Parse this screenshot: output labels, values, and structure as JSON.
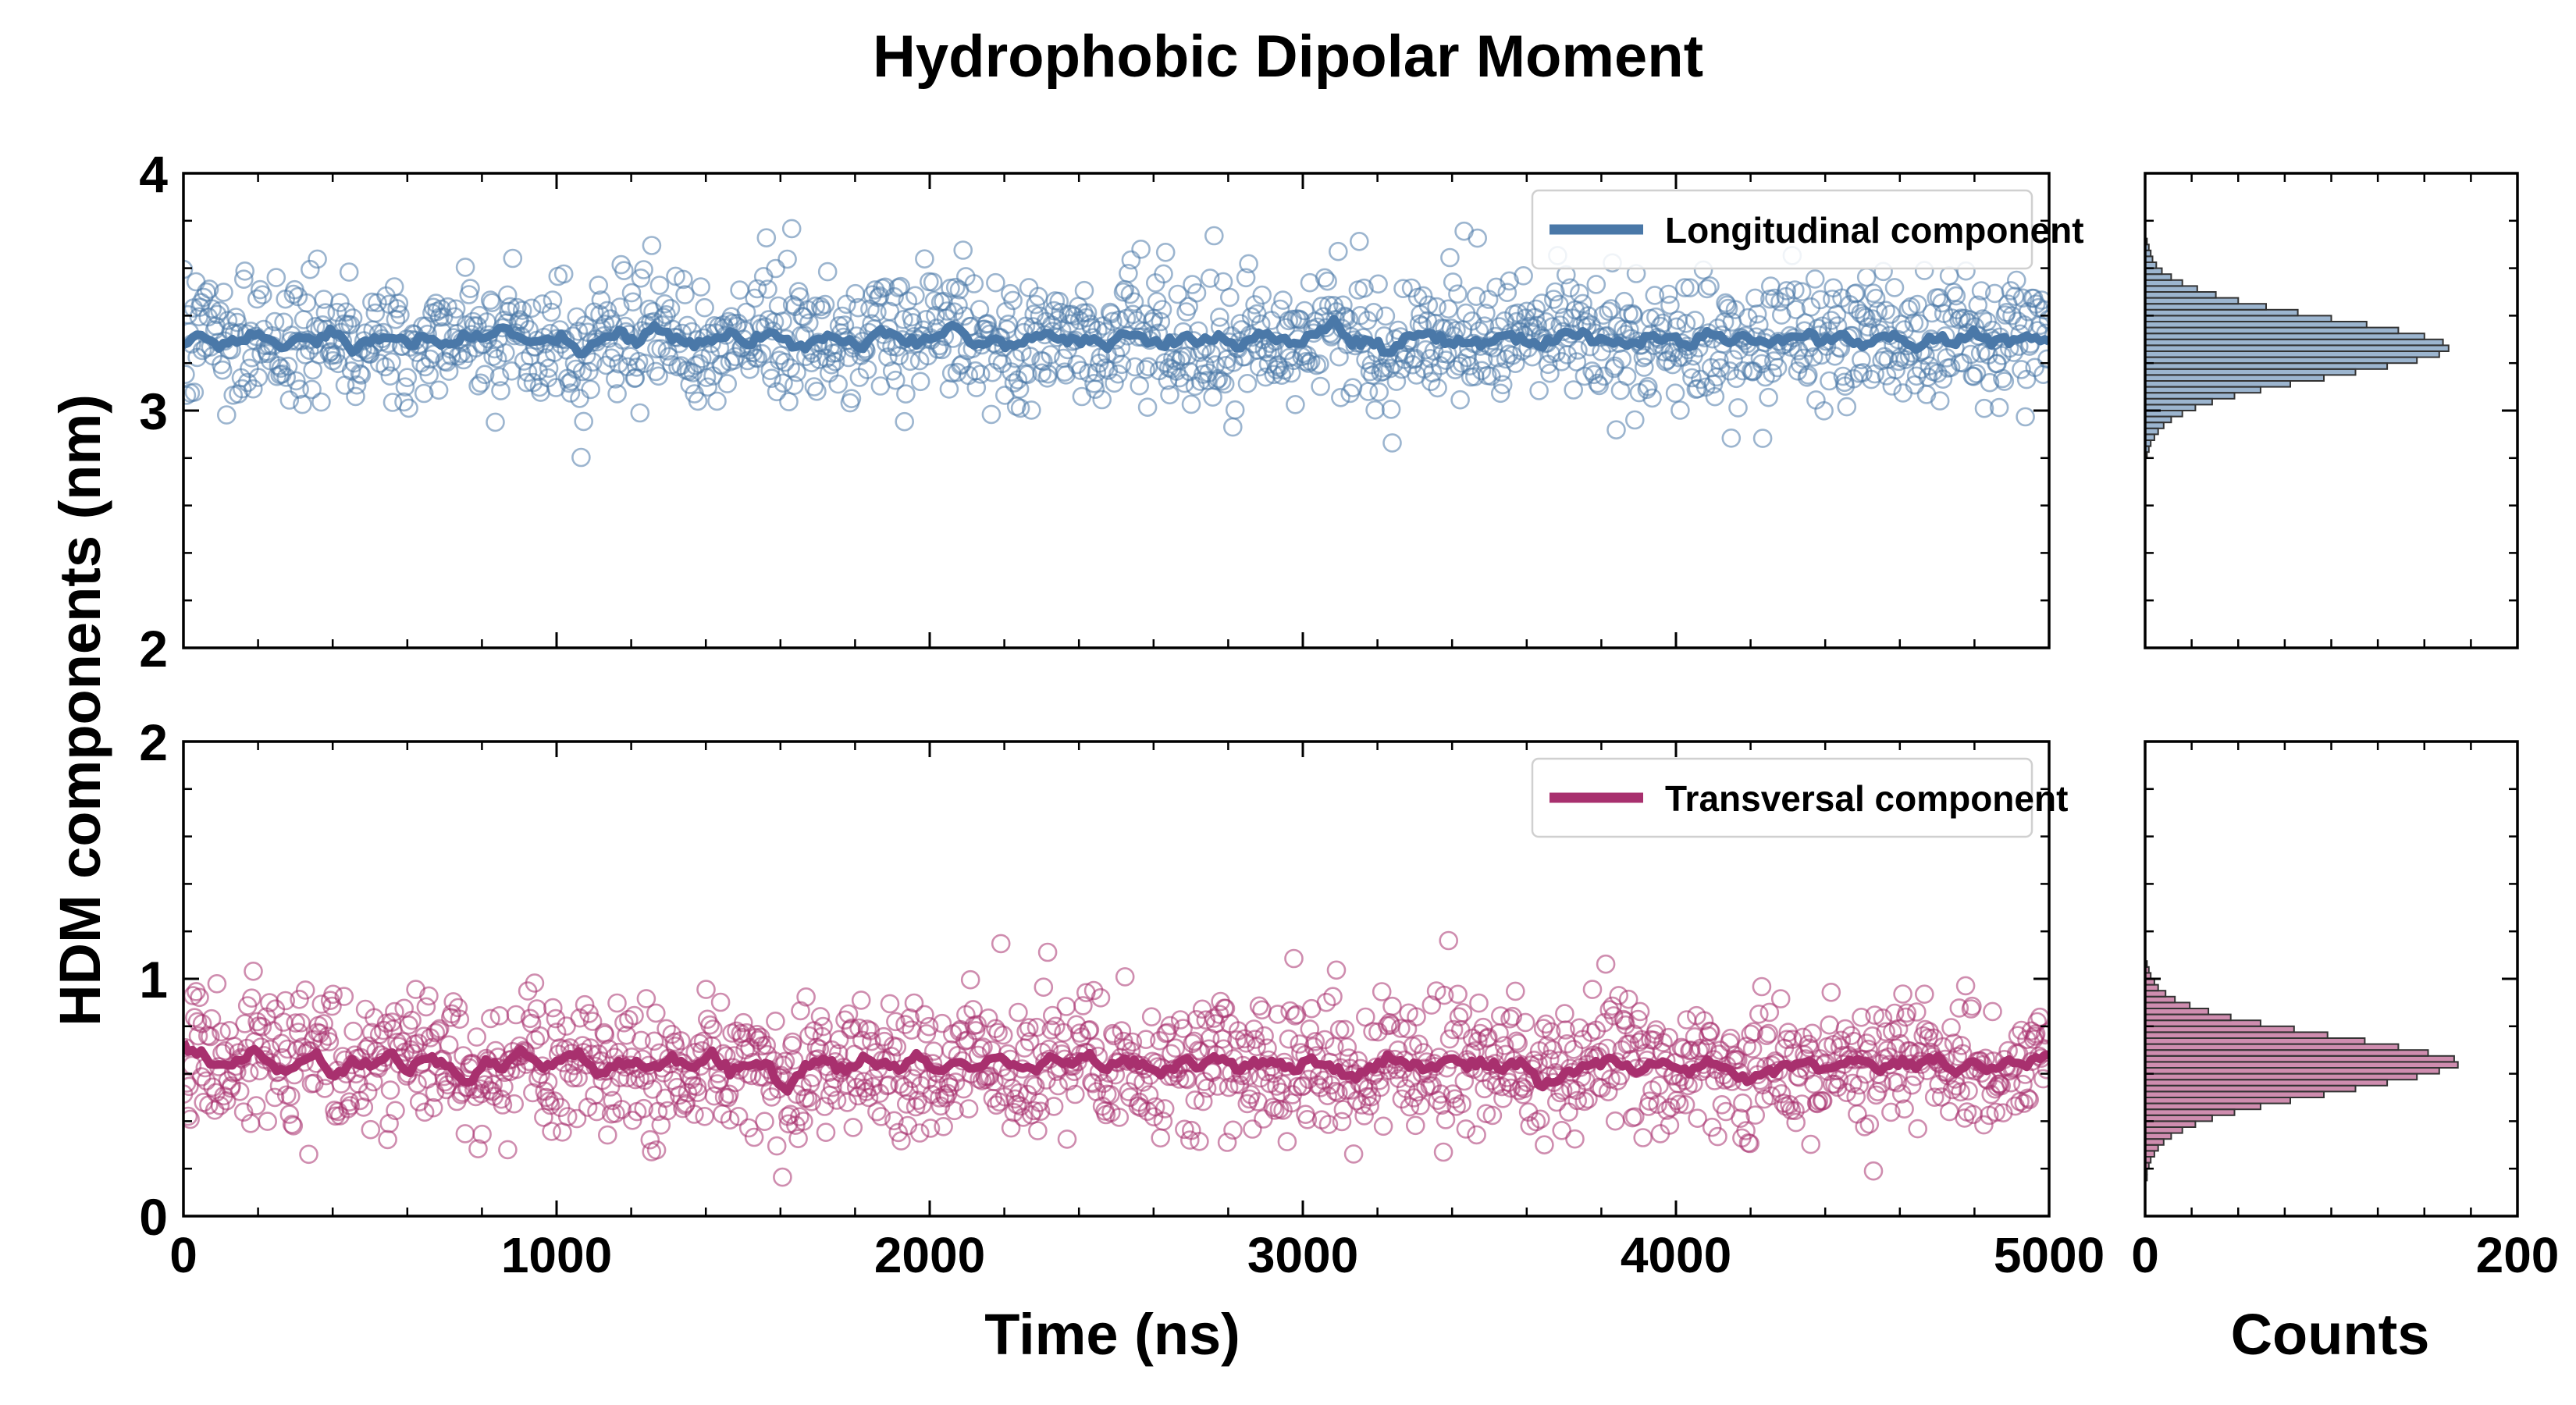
{
  "chart_data": {
    "title": "Hydrophobic Dipolar Moment",
    "ylabel": "HDM components (nm)",
    "xlabel_main": "Time (ns)",
    "xlabel_hist": "Counts",
    "x_range": [
      0,
      5000
    ],
    "x_ticks": [
      0,
      1000,
      2000,
      3000,
      4000,
      5000
    ],
    "x_tick_labels": [
      "0",
      "1000",
      "2000",
      "3000",
      "4000",
      "5000"
    ],
    "hist_x_range": [
      0,
      200
    ],
    "hist_x_ticks": [
      0,
      200
    ],
    "hist_x_tick_labels": [
      "0",
      "200"
    ],
    "panels": [
      {
        "type": "scatter+line",
        "legend": "Longitudinal component",
        "color": "#4a78a8",
        "ylim": [
          2,
          4
        ],
        "y_ticks": [
          2,
          3,
          4
        ],
        "y_tick_labels": [
          "2",
          "3",
          "4"
        ],
        "n_points": 1400,
        "seed": 7,
        "scatter_mean": 3.3,
        "scatter_sd": 0.15,
        "running_mean": [
          3.28,
          3.32,
          3.27,
          3.3,
          3.33,
          3.26,
          3.31,
          3.29,
          3.34,
          3.25,
          3.3,
          3.32,
          3.28,
          3.31,
          3.27,
          3.33,
          3.29,
          3.35,
          3.3,
          3.28,
          3.31,
          3.24,
          3.3,
          3.33,
          3.29,
          3.36,
          3.31,
          3.27,
          3.3,
          3.32,
          3.28,
          3.34,
          3.29,
          3.26,
          3.31,
          3.3,
          3.27,
          3.33,
          3.3,
          3.29,
          3.32,
          3.35,
          3.28,
          3.3,
          3.26,
          3.31,
          3.33,
          3.29,
          3.3,
          3.27,
          3.34,
          3.3,
          3.28,
          3.31,
          3.29,
          3.32,
          3.27,
          3.33,
          3.3,
          3.29,
          3.31,
          3.38,
          3.28,
          3.3,
          3.24,
          3.31,
          3.33,
          3.29,
          3.3,
          3.27,
          3.32,
          3.3,
          3.28,
          3.31,
          3.33,
          3.29,
          3.3,
          3.27,
          3.32,
          3.3,
          3.28,
          3.34,
          3.29,
          3.31,
          3.27,
          3.3,
          3.33,
          3.29,
          3.31,
          3.28,
          3.3,
          3.32,
          3.27,
          3.31,
          3.29,
          3.33,
          3.28,
          3.3,
          3.31,
          3.3
        ],
        "hist": {
          "bin_start": 2.8,
          "bin_width": 0.025,
          "counts": [
            1,
            2,
            3,
            5,
            7,
            10,
            14,
            20,
            27,
            36,
            48,
            62,
            78,
            96,
            113,
            130,
            146,
            158,
            163,
            160,
            150,
            136,
            119,
            100,
            82,
            65,
            50,
            38,
            28,
            20,
            14,
            9,
            6,
            4,
            3,
            2,
            1
          ]
        }
      },
      {
        "type": "scatter+line",
        "legend": "Transversal component",
        "color": "#a8306e",
        "ylim": [
          0,
          2
        ],
        "y_ticks": [
          0,
          1,
          2
        ],
        "y_tick_labels": [
          "0",
          "1",
          "2"
        ],
        "n_points": 1400,
        "seed": 19,
        "scatter_mean": 0.64,
        "scatter_sd": 0.16,
        "running_mean": [
          0.72,
          0.68,
          0.62,
          0.66,
          0.7,
          0.6,
          0.64,
          0.68,
          0.58,
          0.66,
          0.63,
          0.69,
          0.61,
          0.67,
          0.64,
          0.55,
          0.66,
          0.62,
          0.7,
          0.63,
          0.65,
          0.68,
          0.6,
          0.64,
          0.66,
          0.62,
          0.67,
          0.63,
          0.69,
          0.61,
          0.65,
          0.64,
          0.52,
          0.63,
          0.67,
          0.61,
          0.66,
          0.64,
          0.62,
          0.68,
          0.6,
          0.65,
          0.63,
          0.67,
          0.64,
          0.61,
          0.66,
          0.63,
          0.68,
          0.62,
          0.65,
          0.64,
          0.6,
          0.66,
          0.63,
          0.67,
          0.61,
          0.65,
          0.64,
          0.62,
          0.66,
          0.63,
          0.58,
          0.62,
          0.68,
          0.64,
          0.61,
          0.66,
          0.63,
          0.65,
          0.62,
          0.66,
          0.55,
          0.58,
          0.62,
          0.64,
          0.66,
          0.61,
          0.65,
          0.63,
          0.6,
          0.66,
          0.63,
          0.56,
          0.6,
          0.63,
          0.65,
          0.61,
          0.64,
          0.66,
          0.62,
          0.65,
          0.63,
          0.67,
          0.61,
          0.64,
          0.62,
          0.66,
          0.64,
          0.68
        ],
        "hist": {
          "bin_start": 0.0,
          "bin_width": 0.025,
          "counts": [
            0,
            0,
            0,
            0,
            0,
            0,
            1,
            1,
            2,
            3,
            5,
            7,
            10,
            14,
            20,
            27,
            36,
            48,
            62,
            78,
            96,
            113,
            130,
            146,
            158,
            168,
            166,
            152,
            136,
            118,
            98,
            80,
            62,
            46,
            34,
            24,
            16,
            11,
            7,
            5,
            3,
            2,
            1
          ]
        }
      }
    ]
  }
}
